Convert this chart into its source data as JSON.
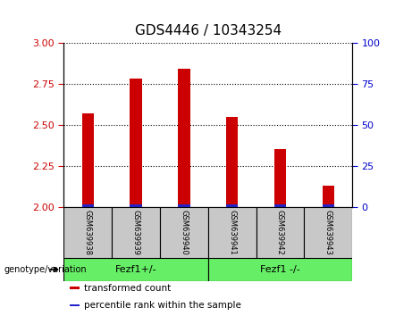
{
  "title": "GDS4446 / 10343254",
  "samples": [
    "GSM639938",
    "GSM639939",
    "GSM639940",
    "GSM639941",
    "GSM639942",
    "GSM639943"
  ],
  "transformed_counts": [
    2.57,
    2.78,
    2.84,
    2.55,
    2.35,
    2.13
  ],
  "blue_bar_height": 0.018,
  "ylim_left": [
    2.0,
    3.0
  ],
  "ylim_right": [
    0,
    100
  ],
  "yticks_left": [
    2.0,
    2.25,
    2.5,
    2.75,
    3.0
  ],
  "yticks_right": [
    0,
    25,
    50,
    75,
    100
  ],
  "bar_color_red": "#cc0000",
  "bar_color_blue": "#2222cc",
  "group_labels": [
    "Fezf1+/-",
    "Fezf1 -/-"
  ],
  "group_ranges": [
    [
      0,
      2
    ],
    [
      3,
      5
    ]
  ],
  "group_color": "#66ee66",
  "sample_box_color": "#c8c8c8",
  "group_label_text": "genotype/variation",
  "legend_items": [
    {
      "color": "#cc0000",
      "label": "transformed count"
    },
    {
      "color": "#2222cc",
      "label": "percentile rank within the sample"
    }
  ],
  "bar_width": 0.25,
  "left_tick_color": "#cc0000",
  "right_tick_color": "#0000cc",
  "title_fontsize": 11,
  "tick_fontsize": 8,
  "sample_fontsize": 6,
  "group_fontsize": 8,
  "legend_fontsize": 7.5
}
